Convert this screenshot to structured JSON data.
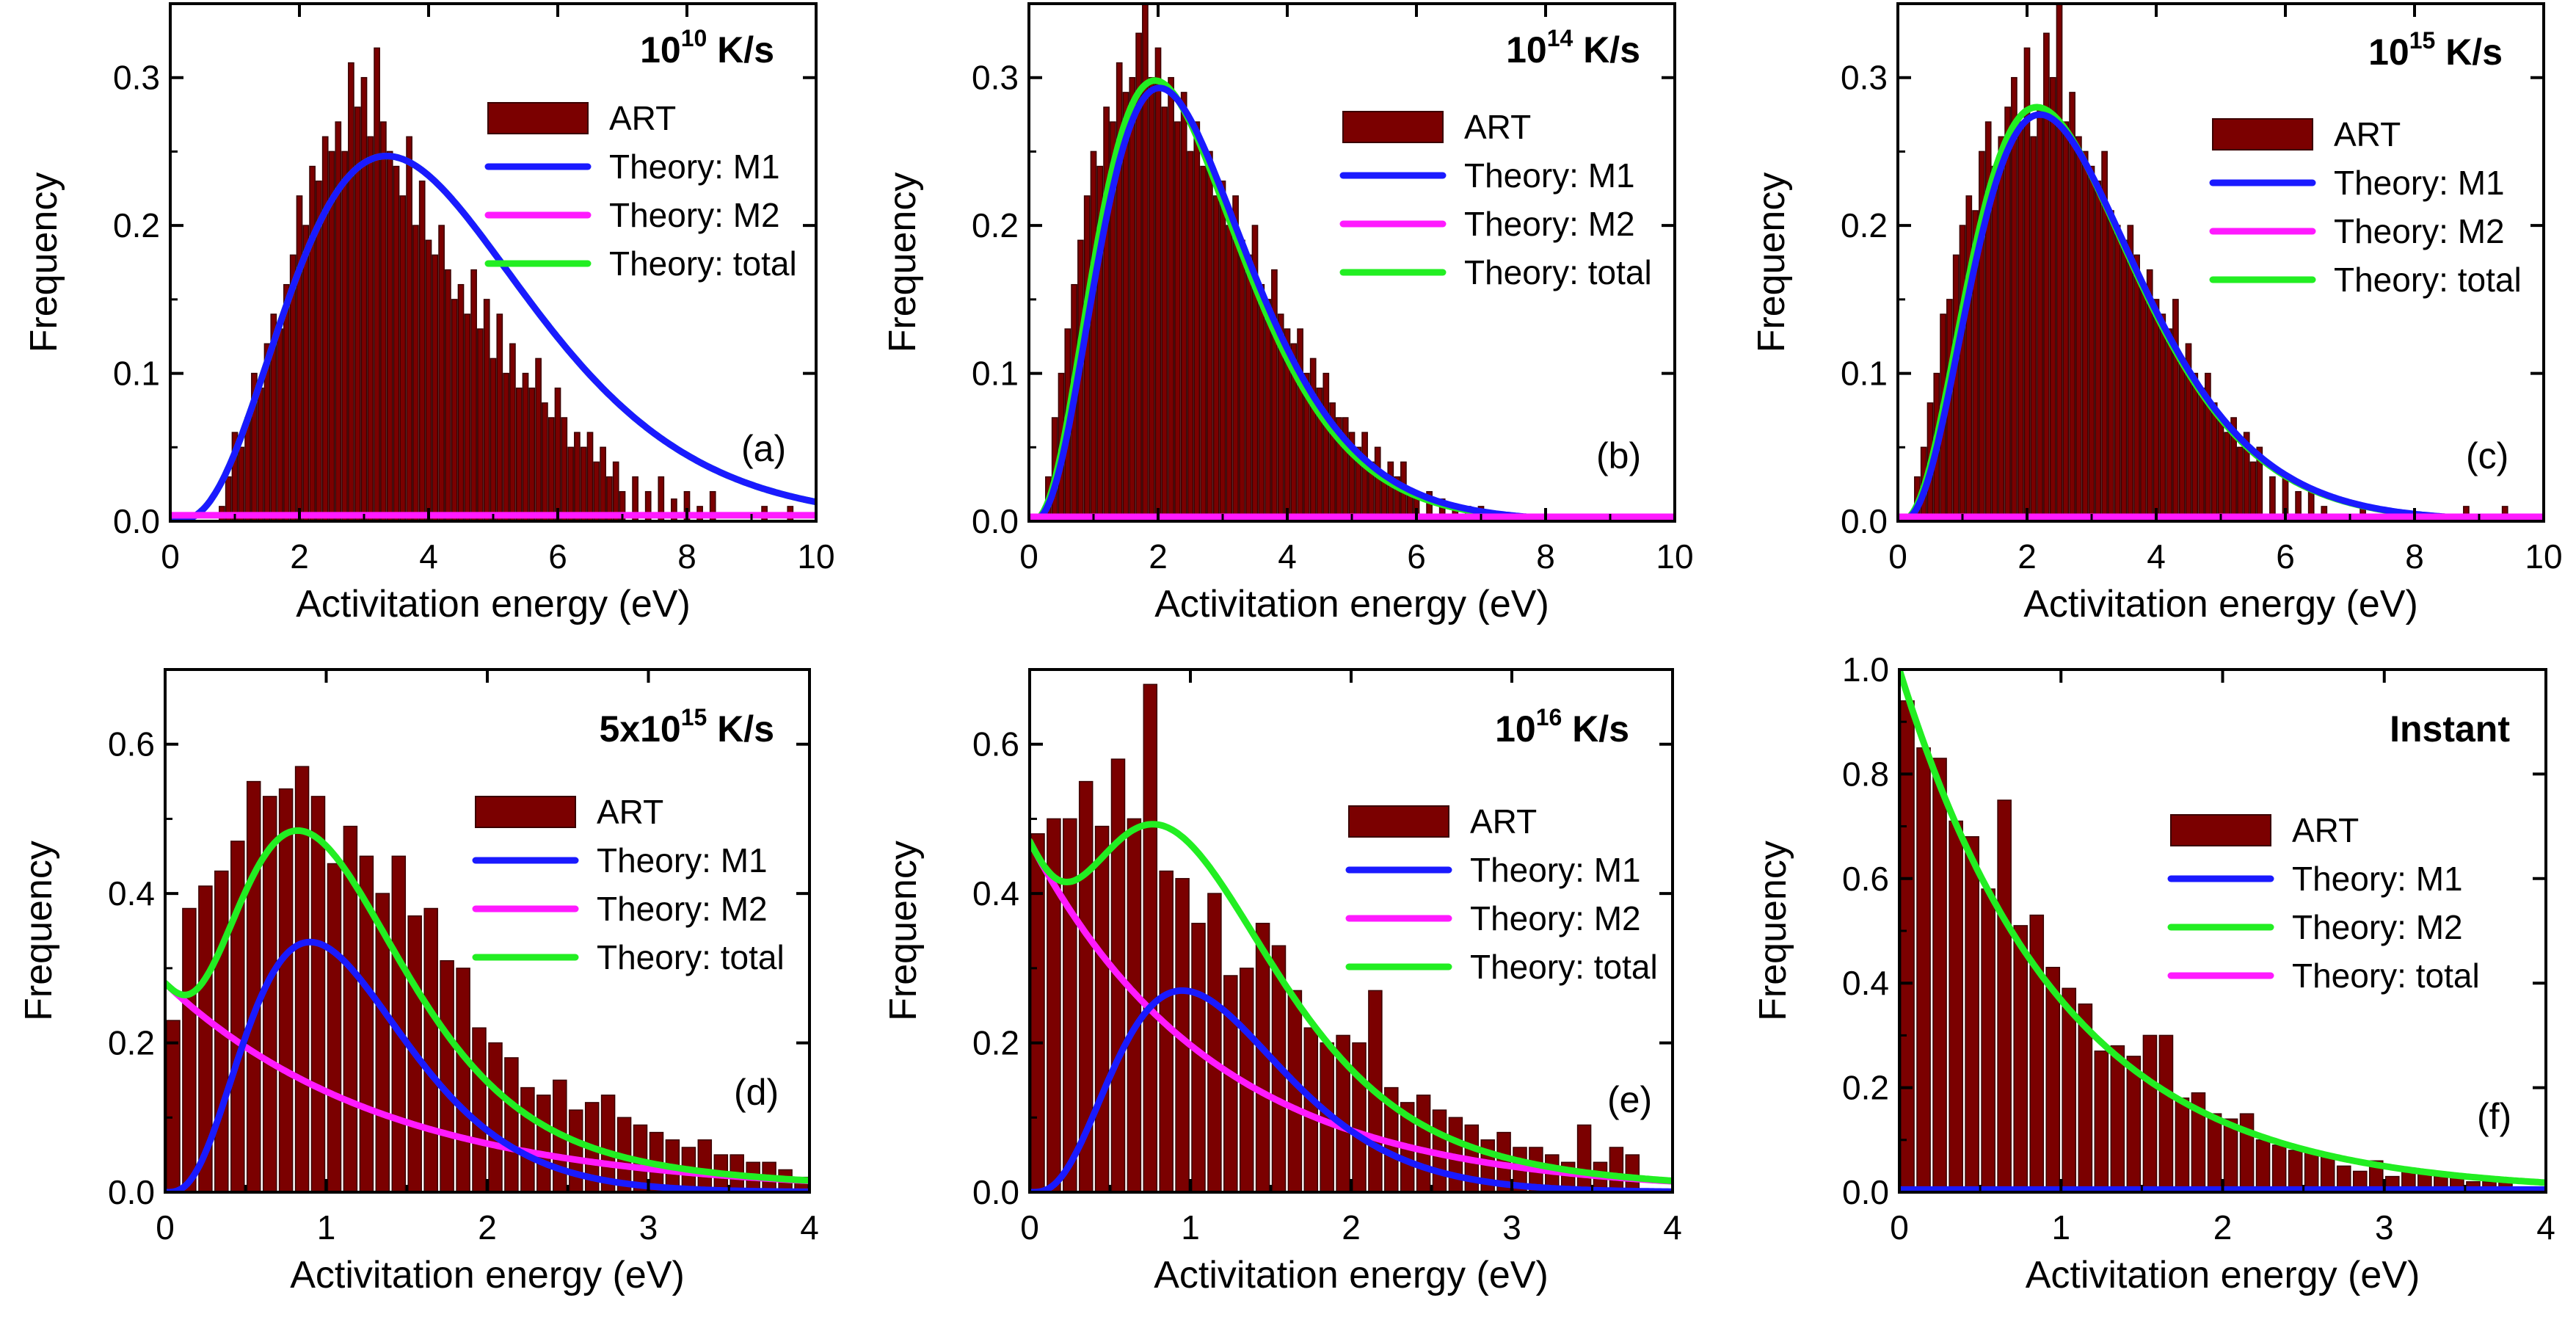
{
  "figure": {
    "colors": {
      "art": "#7b0000",
      "art_edge": "#3a0000",
      "m1": "#1a1aff",
      "m2": "#ff1aff",
      "total": "#22ee22",
      "axis": "#000000"
    }
  },
  "chart_data": [
    {
      "type": "bar",
      "panel_label": "(a)",
      "title_text": "10",
      "title_sup": "10",
      "title_unit": " K/s",
      "xlabel": "Activitation energy (eV)",
      "ylabel": "Frequency",
      "xlim": [
        0,
        10
      ],
      "ylim": [
        0,
        0.35
      ],
      "xticks": [
        0,
        2,
        4,
        6,
        8,
        10
      ],
      "yticks": [
        0.0,
        0.1,
        0.2,
        0.3
      ],
      "ytick_format": 1,
      "legend_placement": "top-right",
      "legend": [
        {
          "kind": "bar",
          "label": "ART"
        },
        {
          "kind": "line",
          "label": "Theory: M1",
          "color_key": "m1"
        },
        {
          "kind": "line",
          "label": "Theory: M2",
          "color_key": "m2"
        },
        {
          "kind": "line",
          "label": "Theory: total",
          "color_key": "total"
        }
      ],
      "histogram": {
        "bin_width": 0.1,
        "x": [
          0.8,
          0.9,
          1.0,
          1.1,
          1.2,
          1.3,
          1.4,
          1.5,
          1.6,
          1.7,
          1.8,
          1.9,
          2.0,
          2.1,
          2.2,
          2.3,
          2.4,
          2.5,
          2.6,
          2.7,
          2.8,
          2.9,
          3.0,
          3.1,
          3.2,
          3.3,
          3.4,
          3.5,
          3.6,
          3.7,
          3.8,
          3.9,
          4.0,
          4.1,
          4.2,
          4.3,
          4.4,
          4.5,
          4.6,
          4.7,
          4.8,
          4.9,
          5.0,
          5.1,
          5.2,
          5.3,
          5.4,
          5.5,
          5.6,
          5.7,
          5.8,
          5.9,
          6.0,
          6.1,
          6.2,
          6.3,
          6.4,
          6.5,
          6.6,
          6.7,
          6.8,
          6.9,
          7.0,
          7.2,
          7.4,
          7.6,
          7.8,
          8.0,
          8.2,
          8.4,
          9.2,
          9.6
        ],
        "values": [
          0.01,
          0.03,
          0.06,
          0.05,
          0.07,
          0.1,
          0.09,
          0.12,
          0.14,
          0.13,
          0.16,
          0.18,
          0.22,
          0.2,
          0.24,
          0.23,
          0.26,
          0.25,
          0.27,
          0.25,
          0.31,
          0.28,
          0.3,
          0.26,
          0.32,
          0.27,
          0.25,
          0.24,
          0.22,
          0.26,
          0.2,
          0.23,
          0.19,
          0.18,
          0.2,
          0.17,
          0.15,
          0.16,
          0.14,
          0.17,
          0.13,
          0.15,
          0.11,
          0.14,
          0.1,
          0.12,
          0.09,
          0.1,
          0.09,
          0.11,
          0.08,
          0.07,
          0.09,
          0.07,
          0.05,
          0.06,
          0.05,
          0.06,
          0.04,
          0.05,
          0.03,
          0.04,
          0.02,
          0.03,
          0.02,
          0.03,
          0.015,
          0.02,
          0.01,
          0.02,
          0.01,
          0.01
        ]
      },
      "curves": [
        {
          "name": "Theory: total",
          "color_key": "total",
          "model": "gamma",
          "amplitude": 0.247,
          "peak": 3.35,
          "shape": 3.3
        },
        {
          "name": "Theory: M1",
          "color_key": "m1",
          "model": "gamma",
          "amplitude": 0.247,
          "peak": 3.35,
          "shape": 3.3
        },
        {
          "name": "Theory: M2",
          "color_key": "m2",
          "model": "flat",
          "amplitude": 0.004
        }
      ]
    },
    {
      "type": "bar",
      "panel_label": "(b)",
      "title_text": "10",
      "title_sup": "14",
      "title_unit": " K/s",
      "xlabel": "Activitation energy (eV)",
      "ylabel": "Frequency",
      "xlim": [
        0,
        10
      ],
      "ylim": [
        0,
        0.35
      ],
      "xticks": [
        0,
        2,
        4,
        6,
        8,
        10
      ],
      "yticks": [
        0.0,
        0.1,
        0.2,
        0.3
      ],
      "ytick_format": 1,
      "legend_placement": "top-right",
      "legend": [
        {
          "kind": "bar",
          "label": "ART"
        },
        {
          "kind": "line",
          "label": "Theory: M1",
          "color_key": "m1"
        },
        {
          "kind": "line",
          "label": "Theory: M2",
          "color_key": "m2"
        },
        {
          "kind": "line",
          "label": "Theory: total",
          "color_key": "total"
        }
      ],
      "histogram": {
        "bin_width": 0.1,
        "x": [
          0.3,
          0.4,
          0.5,
          0.6,
          0.7,
          0.8,
          0.9,
          1.0,
          1.1,
          1.2,
          1.3,
          1.4,
          1.5,
          1.6,
          1.7,
          1.8,
          1.9,
          2.0,
          2.1,
          2.2,
          2.3,
          2.4,
          2.5,
          2.6,
          2.7,
          2.8,
          2.9,
          3.0,
          3.1,
          3.2,
          3.3,
          3.4,
          3.5,
          3.6,
          3.7,
          3.8,
          3.9,
          4.0,
          4.1,
          4.2,
          4.3,
          4.4,
          4.5,
          4.6,
          4.7,
          4.8,
          4.9,
          5.0,
          5.1,
          5.2,
          5.3,
          5.4,
          5.5,
          5.6,
          5.7,
          5.8,
          5.9,
          6.0,
          6.2,
          6.4,
          6.6,
          6.8,
          7.0,
          7.2
        ],
        "values": [
          0.03,
          0.07,
          0.1,
          0.13,
          0.16,
          0.19,
          0.22,
          0.25,
          0.24,
          0.28,
          0.27,
          0.31,
          0.29,
          0.3,
          0.33,
          0.35,
          0.3,
          0.32,
          0.28,
          0.3,
          0.27,
          0.29,
          0.25,
          0.27,
          0.24,
          0.25,
          0.22,
          0.23,
          0.2,
          0.22,
          0.19,
          0.18,
          0.2,
          0.16,
          0.15,
          0.17,
          0.14,
          0.13,
          0.12,
          0.13,
          0.1,
          0.11,
          0.09,
          0.1,
          0.08,
          0.07,
          0.07,
          0.06,
          0.05,
          0.06,
          0.04,
          0.05,
          0.03,
          0.04,
          0.03,
          0.04,
          0.02,
          0.02,
          0.02,
          0.015,
          0.01,
          0.01,
          0.01,
          0.005
        ]
      },
      "curves": [
        {
          "name": "Theory: total",
          "color_key": "total",
          "model": "gamma",
          "amplitude": 0.298,
          "peak": 1.95,
          "shape": 3.0
        },
        {
          "name": "Theory: M1",
          "color_key": "m1",
          "model": "gamma",
          "amplitude": 0.293,
          "peak": 2.02,
          "shape": 3.1
        },
        {
          "name": "Theory: M2",
          "color_key": "m2",
          "model": "flat",
          "amplitude": 0.003
        }
      ]
    },
    {
      "type": "bar",
      "panel_label": "(c)",
      "title_text": "10",
      "title_sup": "15",
      "title_unit": " K/s",
      "xlabel": "Activitation energy (eV)",
      "ylabel": "Frequency",
      "xlim": [
        0,
        10
      ],
      "ylim": [
        0,
        0.35
      ],
      "xticks": [
        0,
        2,
        4,
        6,
        8,
        10
      ],
      "yticks": [
        0.0,
        0.1,
        0.2,
        0.3
      ],
      "ytick_format": 1,
      "legend_placement": "top-right",
      "legend": [
        {
          "kind": "bar",
          "label": "ART"
        },
        {
          "kind": "line",
          "label": "Theory: M1",
          "color_key": "m1"
        },
        {
          "kind": "line",
          "label": "Theory: M2",
          "color_key": "m2"
        },
        {
          "kind": "line",
          "label": "Theory: total",
          "color_key": "total"
        }
      ],
      "histogram": {
        "bin_width": 0.1,
        "x": [
          0.3,
          0.4,
          0.5,
          0.6,
          0.7,
          0.8,
          0.9,
          1.0,
          1.1,
          1.2,
          1.3,
          1.4,
          1.5,
          1.6,
          1.7,
          1.8,
          1.9,
          2.0,
          2.1,
          2.2,
          2.3,
          2.4,
          2.5,
          2.6,
          2.7,
          2.8,
          2.9,
          3.0,
          3.1,
          3.2,
          3.3,
          3.4,
          3.5,
          3.6,
          3.7,
          3.8,
          3.9,
          4.0,
          4.1,
          4.2,
          4.3,
          4.4,
          4.5,
          4.6,
          4.7,
          4.8,
          4.9,
          5.0,
          5.1,
          5.2,
          5.3,
          5.4,
          5.5,
          5.6,
          5.8,
          6.0,
          6.2,
          6.4,
          6.6,
          7.2,
          8.8,
          9.4
        ],
        "values": [
          0.03,
          0.05,
          0.08,
          0.1,
          0.14,
          0.15,
          0.18,
          0.2,
          0.22,
          0.21,
          0.25,
          0.27,
          0.24,
          0.26,
          0.28,
          0.3,
          0.27,
          0.32,
          0.26,
          0.28,
          0.33,
          0.3,
          0.35,
          0.27,
          0.29,
          0.26,
          0.25,
          0.24,
          0.23,
          0.25,
          0.21,
          0.2,
          0.19,
          0.2,
          0.18,
          0.16,
          0.17,
          0.15,
          0.14,
          0.13,
          0.15,
          0.11,
          0.12,
          0.1,
          0.09,
          0.1,
          0.08,
          0.07,
          0.06,
          0.07,
          0.05,
          0.06,
          0.04,
          0.05,
          0.03,
          0.03,
          0.02,
          0.02,
          0.01,
          0.01,
          0.01,
          0.01
        ]
      },
      "curves": [
        {
          "name": "Theory: total",
          "color_key": "total",
          "model": "gamma",
          "amplitude": 0.28,
          "peak": 2.15,
          "shape": 2.9
        },
        {
          "name": "Theory: M1",
          "color_key": "m1",
          "model": "gamma",
          "amplitude": 0.275,
          "peak": 2.2,
          "shape": 3.0
        },
        {
          "name": "Theory: M2",
          "color_key": "m2",
          "model": "flat",
          "amplitude": 0.003
        }
      ]
    },
    {
      "type": "bar",
      "panel_label": "(d)",
      "title_text": "5x10",
      "title_sup": "15",
      "title_unit": " K/s",
      "xlabel": "Activitation energy (eV)",
      "ylabel": "Frequency",
      "xlim": [
        0,
        4
      ],
      "ylim": [
        0,
        0.7
      ],
      "xticks": [
        0,
        1,
        2,
        3,
        4
      ],
      "yticks": [
        0.0,
        0.2,
        0.4,
        0.6
      ],
      "ytick_format": 1,
      "legend_placement": "right",
      "legend": [
        {
          "kind": "bar",
          "label": "ART"
        },
        {
          "kind": "line",
          "label": "Theory: M1",
          "color_key": "m1"
        },
        {
          "kind": "line",
          "label": "Theory: M2",
          "color_key": "m2"
        },
        {
          "kind": "line",
          "label": "Theory: total",
          "color_key": "total"
        }
      ],
      "histogram": {
        "bin_width": 0.1,
        "x": [
          0.05,
          0.15,
          0.25,
          0.35,
          0.45,
          0.55,
          0.65,
          0.75,
          0.85,
          0.95,
          1.05,
          1.15,
          1.25,
          1.35,
          1.45,
          1.55,
          1.65,
          1.75,
          1.85,
          1.95,
          2.05,
          2.15,
          2.25,
          2.35,
          2.45,
          2.55,
          2.65,
          2.75,
          2.85,
          2.95,
          3.05,
          3.15,
          3.25,
          3.35,
          3.45,
          3.55,
          3.65,
          3.75,
          3.85,
          3.95
        ],
        "values": [
          0.23,
          0.38,
          0.41,
          0.43,
          0.47,
          0.55,
          0.53,
          0.54,
          0.57,
          0.53,
          0.44,
          0.49,
          0.45,
          0.4,
          0.45,
          0.37,
          0.38,
          0.31,
          0.3,
          0.22,
          0.2,
          0.18,
          0.14,
          0.13,
          0.15,
          0.11,
          0.12,
          0.13,
          0.1,
          0.09,
          0.08,
          0.07,
          0.06,
          0.07,
          0.05,
          0.05,
          0.04,
          0.04,
          0.03,
          0.02
        ]
      },
      "curves": [
        {
          "name": "Theory: M2",
          "color_key": "m2",
          "model": "exp",
          "amplitude": 0.28,
          "decay": 1.37
        },
        {
          "name": "Theory: M1",
          "color_key": "m1",
          "model": "gamma",
          "amplitude": 0.335,
          "peak": 0.9,
          "shape": 3.3
        },
        {
          "name": "Theory: total",
          "color_key": "total",
          "model": "sum"
        }
      ]
    },
    {
      "type": "bar",
      "panel_label": "(e)",
      "title_text": "10",
      "title_sup": "16",
      "title_unit": " K/s",
      "xlabel": "Activitation energy (eV)",
      "ylabel": "Frequency",
      "xlim": [
        0,
        4
      ],
      "ylim": [
        0,
        0.7
      ],
      "xticks": [
        0,
        1,
        2,
        3,
        4
      ],
      "yticks": [
        0.0,
        0.2,
        0.4,
        0.6
      ],
      "ytick_format": 1,
      "legend_placement": "right",
      "legend": [
        {
          "kind": "bar",
          "label": "ART"
        },
        {
          "kind": "line",
          "label": "Theory: M1",
          "color_key": "m1"
        },
        {
          "kind": "line",
          "label": "Theory: M2",
          "color_key": "m2"
        },
        {
          "kind": "line",
          "label": "Theory: total",
          "color_key": "total"
        }
      ],
      "histogram": {
        "bin_width": 0.1,
        "x": [
          0.05,
          0.15,
          0.25,
          0.35,
          0.45,
          0.55,
          0.65,
          0.75,
          0.85,
          0.95,
          1.05,
          1.15,
          1.25,
          1.35,
          1.45,
          1.55,
          1.65,
          1.75,
          1.85,
          1.95,
          2.05,
          2.15,
          2.25,
          2.35,
          2.45,
          2.55,
          2.65,
          2.75,
          2.85,
          2.95,
          3.05,
          3.15,
          3.25,
          3.35,
          3.45,
          3.55,
          3.65,
          3.75
        ],
        "values": [
          0.48,
          0.5,
          0.5,
          0.55,
          0.49,
          0.58,
          0.5,
          0.68,
          0.43,
          0.42,
          0.36,
          0.4,
          0.29,
          0.3,
          0.36,
          0.33,
          0.27,
          0.22,
          0.2,
          0.21,
          0.2,
          0.27,
          0.14,
          0.12,
          0.13,
          0.11,
          0.1,
          0.09,
          0.07,
          0.08,
          0.06,
          0.06,
          0.05,
          0.04,
          0.09,
          0.04,
          0.06,
          0.05
        ]
      },
      "curves": [
        {
          "name": "Theory: M2",
          "color_key": "m2",
          "model": "exp",
          "amplitude": 0.47,
          "decay": 1.15
        },
        {
          "name": "Theory: M1",
          "color_key": "m1",
          "model": "gamma",
          "amplitude": 0.27,
          "peak": 0.95,
          "shape": 3.3
        },
        {
          "name": "Theory: total",
          "color_key": "total",
          "model": "sum"
        }
      ]
    },
    {
      "type": "bar",
      "panel_label": "(f)",
      "title_text": "Instant",
      "title_sup": "",
      "title_unit": "",
      "xlabel": "Activitation energy (eV)",
      "ylabel": "Frequency",
      "xlim": [
        0,
        4
      ],
      "ylim": [
        0,
        1.0
      ],
      "xticks": [
        0,
        1,
        2,
        3,
        4
      ],
      "yticks": [
        0.0,
        0.2,
        0.4,
        0.6,
        0.8,
        1.0
      ],
      "ytick_format": 1,
      "legend_placement": "right",
      "legend": [
        {
          "kind": "bar",
          "label": "ART"
        },
        {
          "kind": "line",
          "label": "Theory: M1",
          "color_key": "m1"
        },
        {
          "kind": "line",
          "label": "Theory: M2",
          "color_key": "total"
        },
        {
          "kind": "line",
          "label": "Theory: total",
          "color_key": "m2"
        }
      ],
      "histogram": {
        "bin_width": 0.1,
        "x": [
          0.05,
          0.15,
          0.25,
          0.35,
          0.45,
          0.55,
          0.65,
          0.75,
          0.85,
          0.95,
          1.05,
          1.15,
          1.25,
          1.35,
          1.45,
          1.55,
          1.65,
          1.75,
          1.85,
          1.95,
          2.05,
          2.15,
          2.25,
          2.35,
          2.45,
          2.55,
          2.65,
          2.75,
          2.85,
          2.95,
          3.05,
          3.15,
          3.25,
          3.35,
          3.45,
          3.55,
          3.65,
          3.75,
          3.85,
          3.95
        ],
        "values": [
          0.94,
          0.85,
          0.83,
          0.71,
          0.68,
          0.58,
          0.75,
          0.51,
          0.53,
          0.43,
          0.39,
          0.36,
          0.27,
          0.28,
          0.26,
          0.3,
          0.3,
          0.18,
          0.19,
          0.15,
          0.14,
          0.15,
          0.1,
          0.09,
          0.08,
          0.08,
          0.07,
          0.05,
          0.04,
          0.06,
          0.03,
          0.04,
          0.04,
          0.03,
          0.03,
          0.02,
          0.02,
          0.02,
          0.01,
          0.01
        ]
      },
      "curves": [
        {
          "name": "Theory: M1",
          "color_key": "m1",
          "model": "flat",
          "amplitude": 0.005
        },
        {
          "name": "Theory: M2",
          "color_key": "total",
          "model": "exp",
          "amplitude": 1.0,
          "decay": 1.0
        }
      ]
    }
  ]
}
